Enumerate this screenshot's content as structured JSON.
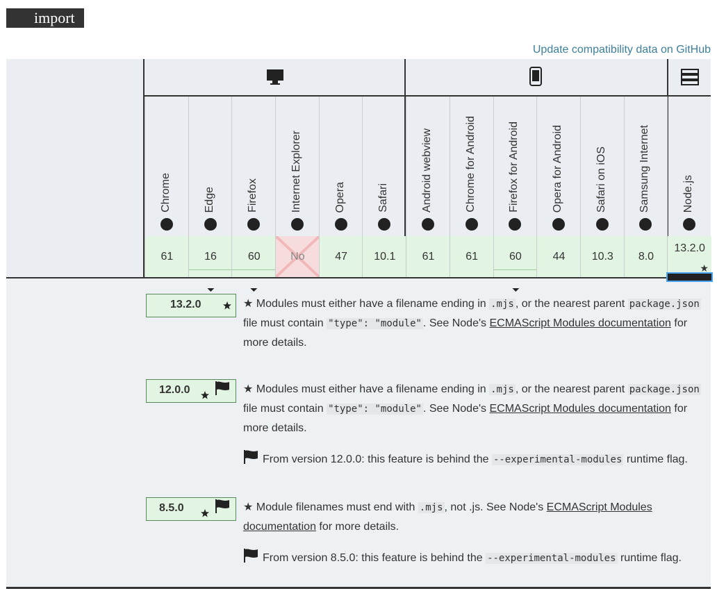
{
  "feature": "import",
  "update_link": "Update compatibility data on GitHub",
  "browsers": [
    "Chrome",
    "Edge",
    "Firefox",
    "Internet Explorer",
    "Opera",
    "Safari",
    "Android webview",
    "Chrome for Android",
    "Firefox for Android",
    "Opera for Android",
    "Safari on iOS",
    "Samsung Internet",
    "Node.js"
  ],
  "support": [
    "61",
    "16",
    "60",
    "No",
    "47",
    "10.1",
    "61",
    "61",
    "60",
    "44",
    "10.3",
    "8.0",
    "13.2.0"
  ],
  "notes": [
    {
      "version": "13.2.0",
      "paragraphs": [
        [
          "★ Modules must either have a filename ending in ",
          {
            "code": ".mjs"
          },
          ", or the nearest parent ",
          {
            "code": "package.json"
          },
          " file must contain ",
          {
            "code": "\"type\": \"module\""
          },
          ". See Node's ",
          {
            "link": "ECMAScript Modules documentation"
          },
          " for more details."
        ]
      ]
    },
    {
      "version": "12.0.0",
      "paragraphs": [
        [
          "★ Modules must either have a filename ending in ",
          {
            "code": ".mjs"
          },
          ", or the nearest parent ",
          {
            "code": "package.json"
          },
          " file must contain ",
          {
            "code": "\"type\": \"module\""
          },
          ". See Node's ",
          {
            "link": "ECMAScript Modules documentation"
          },
          " for more details."
        ],
        [
          "From version 12.0.0: this feature is behind the ",
          {
            "code": "--experimental-modules"
          },
          " runtime flag."
        ]
      ]
    },
    {
      "version": "8.5.0",
      "paragraphs": [
        [
          "★ Module filenames must end with ",
          {
            "code": ".mjs"
          },
          ", not .js. See Node's ",
          {
            "link": "ECMAScript Modules documentation"
          },
          " for more details."
        ],
        [
          "From version 8.5.0: this feature is behind the ",
          {
            "code": "--experimental-modules"
          },
          " runtime flag."
        ]
      ]
    }
  ]
}
